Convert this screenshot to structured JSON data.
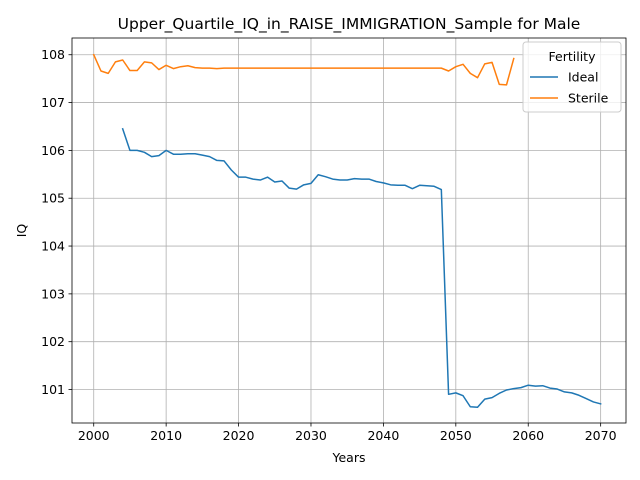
{
  "chart_data": {
    "type": "line",
    "title": "Upper_Quartile_IQ_in_RAISE_IMMIGRATION_Sample for Male",
    "xlabel": "Years",
    "ylabel": "IQ",
    "xlim": [
      1997,
      2073.5
    ],
    "ylim": [
      100.3,
      108.35
    ],
    "xticks": [
      2000,
      2010,
      2020,
      2030,
      2040,
      2050,
      2060,
      2070
    ],
    "yticks": [
      101,
      102,
      103,
      104,
      105,
      106,
      107,
      108
    ],
    "grid": true,
    "legend": {
      "title": "Fertility",
      "placement": "top-right"
    },
    "series": [
      {
        "name": "Ideal",
        "color": "#1f77b4",
        "x": [
          2004,
          2005,
          2006,
          2007,
          2008,
          2009,
          2010,
          2011,
          2012,
          2013,
          2014,
          2015,
          2016,
          2017,
          2018,
          2019,
          2020,
          2021,
          2022,
          2023,
          2024,
          2025,
          2026,
          2027,
          2028,
          2029,
          2030,
          2031,
          2032,
          2033,
          2034,
          2035,
          2036,
          2037,
          2038,
          2039,
          2040,
          2041,
          2042,
          2043,
          2044,
          2045,
          2046,
          2047,
          2048,
          2049,
          2050,
          2051,
          2052,
          2053,
          2054,
          2055,
          2056,
          2057,
          2058,
          2059,
          2060,
          2061,
          2062,
          2063,
          2064,
          2065,
          2066,
          2067,
          2068,
          2069,
          2070
        ],
        "y": [
          106.45,
          106.0,
          106.0,
          105.96,
          105.87,
          105.89,
          106.0,
          105.92,
          105.92,
          105.93,
          105.93,
          105.9,
          105.87,
          105.79,
          105.78,
          105.59,
          105.44,
          105.44,
          105.4,
          105.38,
          105.44,
          105.34,
          105.36,
          105.21,
          105.19,
          105.28,
          105.31,
          105.49,
          105.45,
          105.4,
          105.38,
          105.38,
          105.41,
          105.4,
          105.4,
          105.35,
          105.32,
          105.28,
          105.27,
          105.27,
          105.2,
          105.27,
          105.26,
          105.25,
          105.18,
          100.9,
          100.93,
          100.87,
          100.64,
          100.63,
          100.8,
          100.83,
          100.92,
          100.99,
          101.02,
          101.04,
          101.09,
          101.07,
          101.08,
          101.03,
          101.01,
          100.95,
          100.93,
          100.88,
          100.81,
          100.74,
          100.7
        ]
      },
      {
        "name": "Sterile",
        "color": "#ff7f0e",
        "x": [
          2000,
          2001,
          2002,
          2003,
          2004,
          2005,
          2006,
          2007,
          2008,
          2009,
          2010,
          2011,
          2012,
          2013,
          2014,
          2015,
          2016,
          2017,
          2018,
          2019,
          2020,
          2021,
          2022,
          2023,
          2024,
          2025,
          2026,
          2027,
          2028,
          2029,
          2030,
          2031,
          2032,
          2033,
          2034,
          2035,
          2036,
          2037,
          2038,
          2039,
          2040,
          2041,
          2042,
          2043,
          2044,
          2045,
          2046,
          2047,
          2048,
          2049,
          2050,
          2051,
          2052,
          2053,
          2054,
          2055,
          2056,
          2057,
          2058
        ],
        "y": [
          108.0,
          107.66,
          107.61,
          107.85,
          107.89,
          107.67,
          107.67,
          107.85,
          107.83,
          107.69,
          107.78,
          107.71,
          107.75,
          107.77,
          107.73,
          107.72,
          107.72,
          107.71,
          107.72,
          107.72,
          107.72,
          107.72,
          107.72,
          107.72,
          107.72,
          107.72,
          107.72,
          107.72,
          107.72,
          107.72,
          107.72,
          107.72,
          107.72,
          107.72,
          107.72,
          107.72,
          107.72,
          107.72,
          107.72,
          107.72,
          107.72,
          107.72,
          107.72,
          107.72,
          107.72,
          107.72,
          107.72,
          107.72,
          107.72,
          107.66,
          107.75,
          107.8,
          107.61,
          107.52,
          107.81,
          107.84,
          107.38,
          107.37,
          107.92
        ]
      }
    ]
  }
}
